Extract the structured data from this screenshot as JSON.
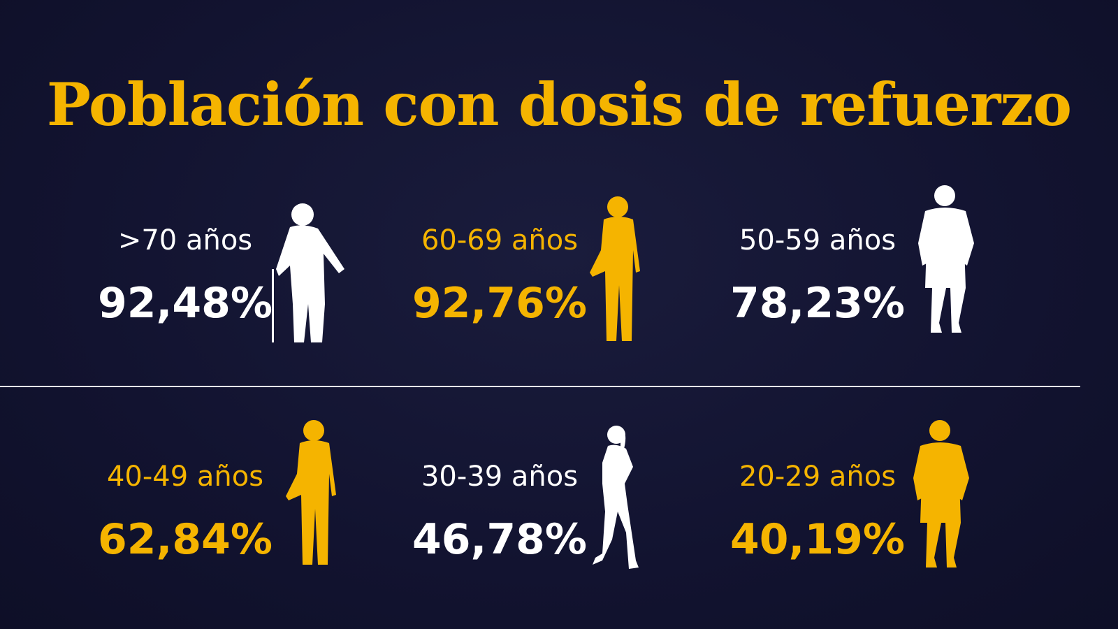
{
  "title": "Población con dosis de refuerzo",
  "colors": {
    "background": "#14152f",
    "accent": "#f5b400",
    "text": "#ffffff"
  },
  "groups": [
    {
      "label": ">70 años",
      "value": "92,48%",
      "color": "white",
      "icon": "elderly-with-cane-silhouette-icon"
    },
    {
      "label": "60-69 años",
      "value": "92,76%",
      "color": "yellow",
      "icon": "older-man-silhouette-icon"
    },
    {
      "label": "50-59 años",
      "value": "78,23%",
      "color": "white",
      "icon": "man-in-shorts-silhouette-icon"
    },
    {
      "label": "40-49 años",
      "value": "62,84%",
      "color": "yellow",
      "icon": "man-in-jacket-silhouette-icon"
    },
    {
      "label": "30-39 años",
      "value": "46,78%",
      "color": "white",
      "icon": "woman-silhouette-icon"
    },
    {
      "label": "20-29 años",
      "value": "40,19%",
      "color": "yellow",
      "icon": "young-man-silhouette-icon"
    }
  ]
}
